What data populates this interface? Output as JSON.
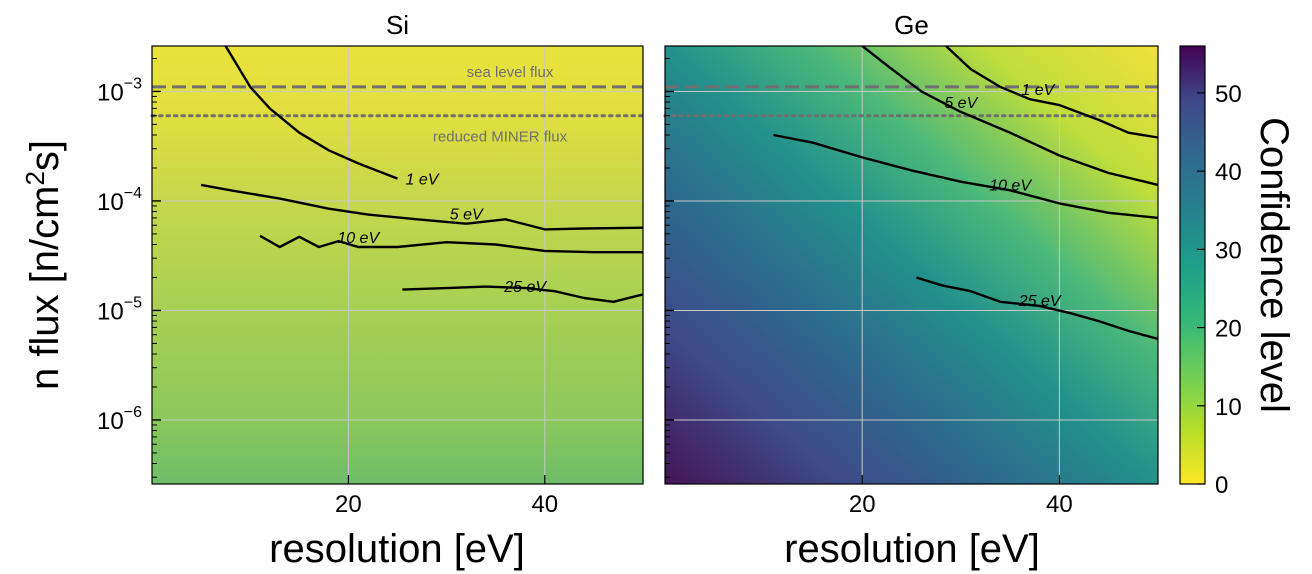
{
  "chart_data": {
    "type": "heatmap",
    "panels": [
      {
        "title": "Si",
        "contours": [
          {
            "label": "1 eV",
            "points": [
              [
                7.5,
                0.0026
              ],
              [
                10,
                0.0011
              ],
              [
                12,
                0.0007
              ],
              [
                15,
                0.00042
              ],
              [
                18,
                0.00029
              ],
              [
                21,
                0.00022
              ],
              [
                25,
                0.00016
              ]
            ]
          },
          {
            "label": "5 eV",
            "points": [
              [
                5,
                0.00014
              ],
              [
                8,
                0.000125
              ],
              [
                13,
                0.000105
              ],
              [
                18,
                8.5e-05
              ],
              [
                22,
                7.5e-05
              ],
              [
                27,
                6.8e-05
              ],
              [
                32,
                6.2e-05
              ],
              [
                36,
                6.8e-05
              ],
              [
                40,
                5.5e-05
              ],
              [
                44,
                5.6e-05
              ],
              [
                50,
                5.7e-05
              ]
            ]
          },
          {
            "label": "10 eV",
            "points": [
              [
                11,
                4.8e-05
              ],
              [
                13,
                3.8e-05
              ],
              [
                15,
                4.7e-05
              ],
              [
                17,
                3.8e-05
              ],
              [
                19,
                4.3e-05
              ],
              [
                21,
                3.8e-05
              ],
              [
                25,
                3.8e-05
              ],
              [
                30,
                4.2e-05
              ],
              [
                35,
                4e-05
              ],
              [
                40,
                3.5e-05
              ],
              [
                45,
                3.4e-05
              ],
              [
                50,
                3.4e-05
              ]
            ]
          },
          {
            "label": "25 eV",
            "points": [
              [
                25.5,
                1.55e-05
              ],
              [
                30,
                1.6e-05
              ],
              [
                34,
                1.65e-05
              ],
              [
                38,
                1.6e-05
              ],
              [
                41,
                1.5e-05
              ],
              [
                44,
                1.3e-05
              ],
              [
                47,
                1.2e-05
              ],
              [
                50,
                1.4e-05
              ]
            ]
          }
        ],
        "reference_lines": [
          {
            "label": "sea level flux",
            "y": 0.0011,
            "style": "dashed"
          },
          {
            "label": "reduced MINER flux",
            "y": 0.0006,
            "style": "dotted"
          }
        ]
      },
      {
        "title": "Ge",
        "contours": [
          {
            "label": "1 eV",
            "points": [
              [
                28.5,
                0.0026
              ],
              [
                31,
                0.0016
              ],
              [
                34,
                0.0011
              ],
              [
                37,
                0.00085
              ],
              [
                40,
                0.00075
              ],
              [
                44,
                0.00055
              ],
              [
                47,
                0.00042
              ],
              [
                50,
                0.00038
              ]
            ]
          },
          {
            "label": "5 eV",
            "points": [
              [
                20,
                0.0026
              ],
              [
                23,
                0.0016
              ],
              [
                26,
                0.001
              ],
              [
                30,
                0.00065
              ],
              [
                35,
                0.00042
              ],
              [
                40,
                0.00026
              ],
              [
                45,
                0.00018
              ],
              [
                50,
                0.00014
              ]
            ]
          },
          {
            "label": "10 eV",
            "points": [
              [
                11,
                0.0004
              ],
              [
                15,
                0.00034
              ],
              [
                20,
                0.00025
              ],
              [
                25,
                0.00019
              ],
              [
                30,
                0.00015
              ],
              [
                35,
                0.000125
              ],
              [
                40,
                9.5e-05
              ],
              [
                45,
                7.8e-05
              ],
              [
                50,
                7e-05
              ]
            ]
          },
          {
            "label": "25 eV",
            "points": [
              [
                25.5,
                2e-05
              ],
              [
                28,
                1.7e-05
              ],
              [
                31,
                1.5e-05
              ],
              [
                34,
                1.2e-05
              ],
              [
                38,
                1.1e-05
              ],
              [
                41,
                9.5e-06
              ],
              [
                44,
                8e-06
              ],
              [
                47,
                6.5e-06
              ],
              [
                50,
                5.5e-06
              ]
            ]
          }
        ],
        "reference_lines": [
          {
            "label": "",
            "y": 0.0011,
            "style": "dashed"
          },
          {
            "label": "",
            "y": 0.0006,
            "style": "dotted"
          }
        ]
      }
    ],
    "xlabel": "resolution [eV]",
    "ylabel": "n flux [n/cm2s]",
    "ylabel_prefix": "n flux [n/cm",
    "ylabel_sup": "2",
    "ylabel_suffix": "s]",
    "x_ticks": [
      {
        "value": 20,
        "label": "20"
      },
      {
        "value": 40,
        "label": "40"
      }
    ],
    "y_ticks": [
      {
        "value": 0.001,
        "base": "10",
        "exp": "−3"
      },
      {
        "value": 0.0001,
        "base": "10",
        "exp": "−4"
      },
      {
        "value": 1e-05,
        "base": "10",
        "exp": "−5"
      },
      {
        "value": 1e-06,
        "base": "10",
        "exp": "−6"
      }
    ],
    "xlim": [
      0,
      50
    ],
    "ylim": [
      2.6e-07,
      0.0026
    ],
    "yscale": "log",
    "grid": true,
    "colorbar": {
      "label": "Confidence level",
      "ticks": [
        "0",
        "10",
        "20",
        "30",
        "40",
        "50"
      ],
      "tick_values": [
        0,
        10,
        20,
        30,
        40,
        50
      ],
      "range": [
        0,
        56
      ],
      "colormap": "viridis_r"
    },
    "colors": {
      "contour": "#000000",
      "reference_line": "#6f6f6f",
      "grid": "#c8c8c8"
    }
  }
}
